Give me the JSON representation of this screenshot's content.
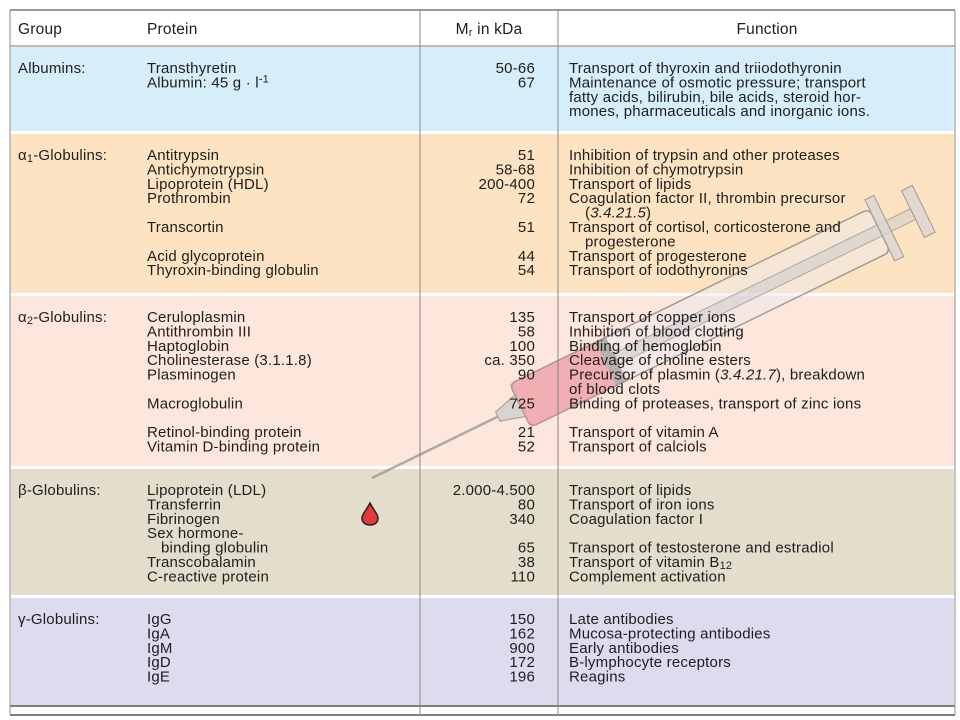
{
  "header": {
    "group": "Group",
    "protein": "Protein",
    "mass": [
      "M",
      {
        "sub": "r"
      },
      " in kDa"
    ],
    "function": "Function"
  },
  "groups": [
    {
      "name": "Albumins:",
      "color": "#d6eefa",
      "lines": [
        {
          "protein": "Transthyretin",
          "mass": "50-66",
          "function": "Transport of thyroxin and triiodothyronin"
        },
        {
          "protein": [
            "Albumin: 45 g · l",
            {
              "sup": "-1"
            }
          ],
          "mass": 67,
          "function": "Maintenance of osmotic pressure; transport"
        },
        {
          "function": "fatty acids, bilirubin, bile acids, steroid hor-"
        },
        {
          "function": "mones, pharmaceuticals and inorganic ions."
        }
      ]
    },
    {
      "name": [
        "α",
        {
          "sub": "1"
        },
        "-Globulins:"
      ],
      "color": "#fde3c1",
      "lines": [
        {
          "protein": "Antitrypsin",
          "mass": 51,
          "function": "Inhibition of trypsin and other proteases"
        },
        {
          "protein": "Antichymotrypsin",
          "mass": "58-68",
          "function": "Inhibition of chymotrypsin"
        },
        {
          "protein": "Lipoprotein (HDL)",
          "mass": "200-400",
          "function": "Transport of lipids"
        },
        {
          "protein": "Prothrombin",
          "mass": 72,
          "function": "Coagulation factor II, thrombin precursor"
        },
        {
          "function": [
            "(",
            {
              "i": "3.4.21.5"
            },
            ")"
          ]
        },
        {
          "protein": "Transcortin",
          "mass": 51,
          "function": "Transport of cortisol, corticosterone and"
        },
        {
          "function": "progesterone"
        },
        {
          "protein": "Acid glycoprotein",
          "mass": 44,
          "function": "Transport of progesterone"
        },
        {
          "protein": "Thyroxin-binding globulin",
          "mass": 54,
          "function": "Transport of iodothyronins"
        }
      ]
    },
    {
      "name": [
        "α",
        {
          "sub": "2"
        },
        "-Globulins:"
      ],
      "color": "#fde6db",
      "lines": [
        {
          "protein": "Ceruloplasmin",
          "mass": 135,
          "function": "Transport of copper ions"
        },
        {
          "protein": "Antithrombin III",
          "mass": 58,
          "function": "Inhibition of blood clotting"
        },
        {
          "protein": "Haptoglobin",
          "mass": 100,
          "function": "Binding of hemoglobin"
        },
        {
          "protein": "Cholinesterase (3.1.1.8)",
          "mass": "ca. 350",
          "function": "Cleavage of choline esters"
        },
        {
          "protein": "Plasminogen",
          "mass": 90,
          "function": [
            "Precursor of plasmin (",
            {
              "i": "3.4.21.7"
            },
            "), breakdown"
          ]
        },
        {
          "function": "of blood clots"
        },
        {
          "protein": "Macroglobulin",
          "mass": 725,
          "function": "Binding of proteases, transport of zinc ions"
        },
        null,
        {
          "protein": "Retinol-binding protein",
          "mass": 21,
          "function": "Transport of vitamin A"
        },
        {
          "protein": "Vitamin D-binding protein",
          "mass": 52,
          "function": "Transport of calciols"
        }
      ]
    },
    {
      "name": "β-Globulins:",
      "color": "#e3ddcc",
      "lines": [
        {
          "protein": "Lipoprotein (LDL)",
          "mass": "2.000-4.500",
          "function": "Transport of lipids"
        },
        {
          "protein": "Transferrin",
          "mass": 80,
          "function": "Transport of iron ions"
        },
        {
          "protein": "Fibrinogen",
          "mass": 340,
          "function": "Coagulation factor I"
        },
        {
          "protein": "Sex hormone-"
        },
        {
          "protein": "binding globulin",
          "mass": 65,
          "function": "Transport of testosterone and estradiol"
        },
        {
          "protein": "Transcobalamin",
          "mass": 38,
          "function": [
            "Transport of vitamin B",
            {
              "sub": "12"
            }
          ]
        },
        {
          "protein": "C-reactive protein",
          "mass": 110,
          "function": "Complement activation"
        }
      ]
    },
    {
      "name": "γ-Globulins:",
      "color": "#dddbee",
      "lines": [
        {
          "protein": "IgG",
          "mass": 150,
          "function": "Late antibodies"
        },
        {
          "protein": "IgA",
          "mass": 162,
          "function": "Mucosa-protecting antibodies"
        },
        {
          "protein": "IgM",
          "mass": 900,
          "function": "Early antibodies"
        },
        {
          "protein": "IgD",
          "mass": 172,
          "function": "B-lymphocyte receptors"
        },
        {
          "protein": "IgE",
          "mass": 196,
          "function": "Reagins"
        }
      ]
    }
  ]
}
